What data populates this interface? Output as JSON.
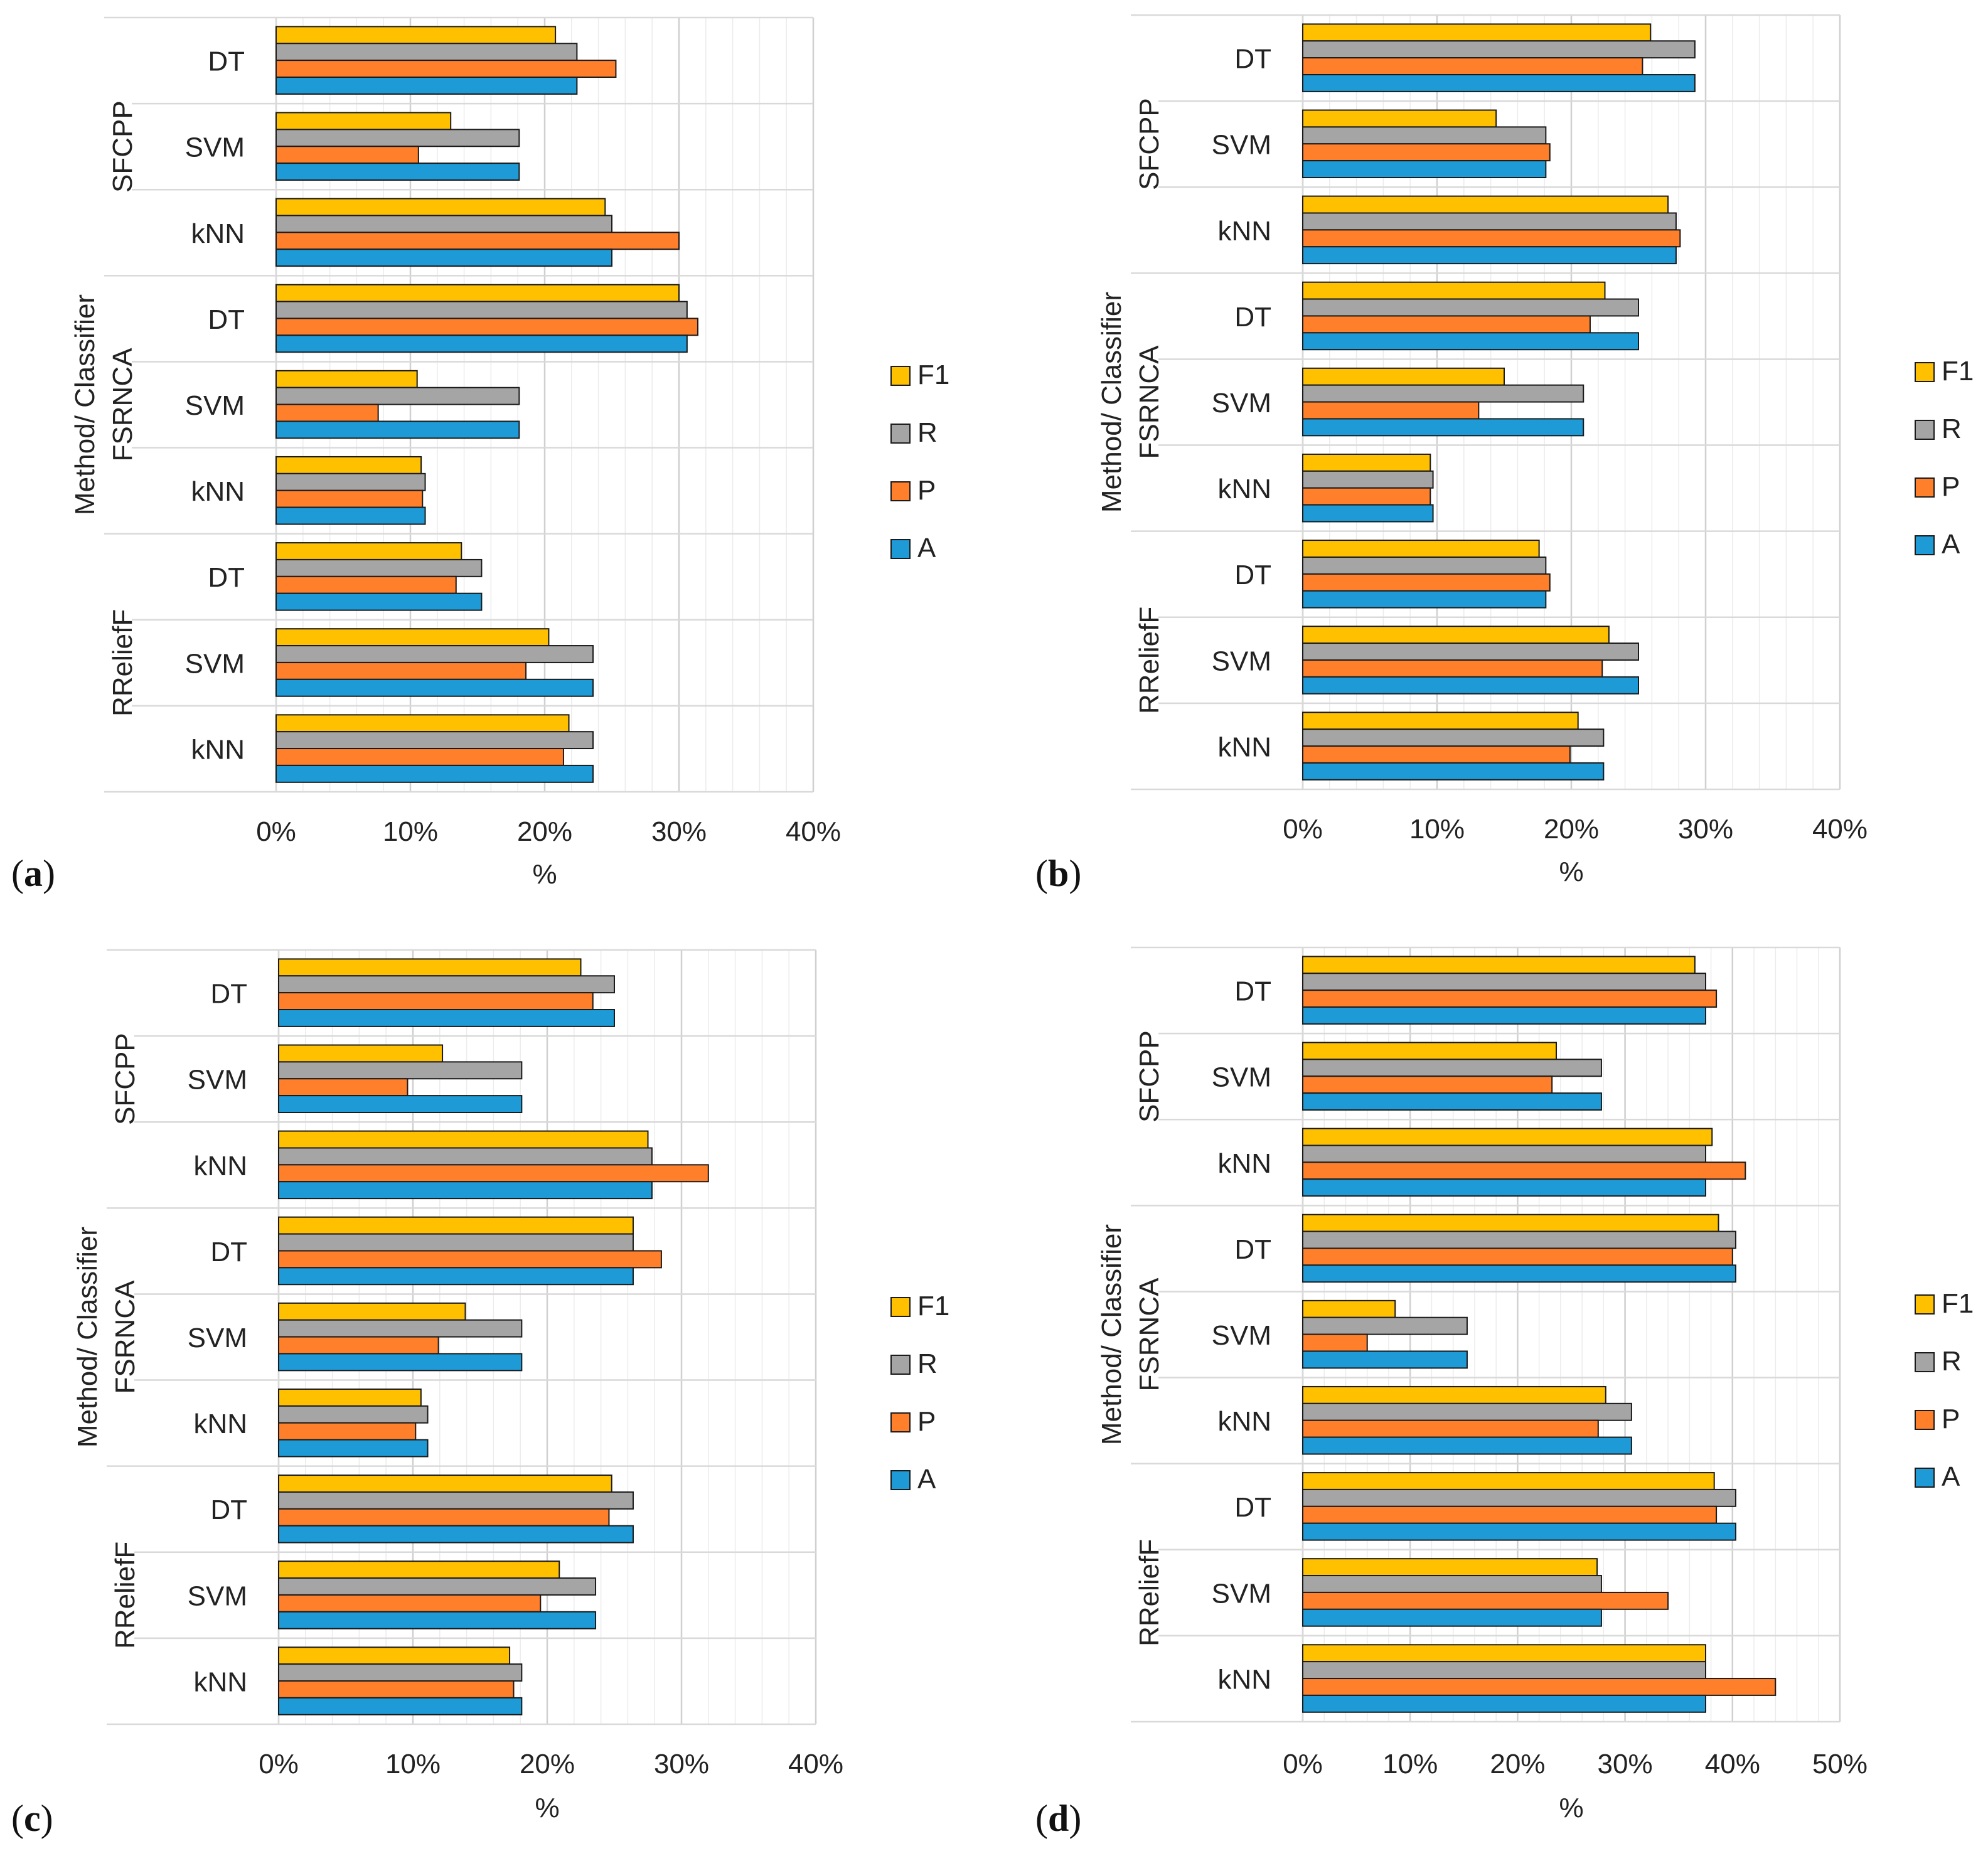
{
  "figure": {
    "ylabel": "Method/ Classifier",
    "xlabel": "%",
    "legend": [
      "F1",
      "R",
      "P",
      "A"
    ],
    "colors": {
      "F1": "#ffc000",
      "R": "#a5a5a5",
      "P": "#ff7f2a",
      "A": "#1e9ad6"
    }
  },
  "chart_data": [
    {
      "panel": "a",
      "type": "bar",
      "orientation": "horizontal",
      "xlabel": "%",
      "ylabel": "Method/ Classifier",
      "xlim": [
        0,
        40
      ],
      "ticks": [
        "0%",
        "10%",
        "20%",
        "30%",
        "40%"
      ],
      "legend": [
        "F1",
        "R",
        "P",
        "A"
      ],
      "groups": [
        {
          "method": "SFCPP",
          "classifiers": [
            {
              "name": "DT",
              "F1": 20.8,
              "R": 22.4,
              "P": 25.3,
              "A": 22.4
            },
            {
              "name": "SVM",
              "F1": 13.0,
              "R": 18.1,
              "P": 10.6,
              "A": 18.1
            },
            {
              "name": "kNN",
              "F1": 24.5,
              "R": 25.0,
              "P": 30.0,
              "A": 25.0
            }
          ]
        },
        {
          "method": "FSRNCA",
          "classifiers": [
            {
              "name": "DT",
              "F1": 30.0,
              "R": 30.6,
              "P": 31.4,
              "A": 30.6
            },
            {
              "name": "SVM",
              "F1": 10.5,
              "R": 18.1,
              "P": 7.6,
              "A": 18.1
            },
            {
              "name": "kNN",
              "F1": 10.8,
              "R": 11.1,
              "P": 10.9,
              "A": 11.1
            }
          ]
        },
        {
          "method": "RReliefF",
          "classifiers": [
            {
              "name": "DT",
              "F1": 13.8,
              "R": 15.3,
              "P": 13.4,
              "A": 15.3
            },
            {
              "name": "SVM",
              "F1": 20.3,
              "R": 23.6,
              "P": 18.6,
              "A": 23.6
            },
            {
              "name": "kNN",
              "F1": 21.8,
              "R": 23.6,
              "P": 21.4,
              "A": 23.6
            }
          ]
        }
      ]
    },
    {
      "panel": "b",
      "type": "bar",
      "orientation": "horizontal",
      "xlabel": "%",
      "ylabel": "Method/ Classifier",
      "xlim": [
        0,
        40
      ],
      "ticks": [
        "0%",
        "10%",
        "20%",
        "30%",
        "40%"
      ],
      "legend": [
        "F1",
        "R",
        "P",
        "A"
      ],
      "groups": [
        {
          "method": "SFCPP",
          "classifiers": [
            {
              "name": "DT",
              "F1": 25.9,
              "R": 29.2,
              "P": 25.3,
              "A": 29.2
            },
            {
              "name": "SVM",
              "F1": 14.4,
              "R": 18.1,
              "P": 18.4,
              "A": 18.1
            },
            {
              "name": "kNN",
              "F1": 27.2,
              "R": 27.8,
              "P": 28.1,
              "A": 27.8
            }
          ]
        },
        {
          "method": "FSRNCA",
          "classifiers": [
            {
              "name": "DT",
              "F1": 22.5,
              "R": 25.0,
              "P": 21.4,
              "A": 25.0
            },
            {
              "name": "SVM",
              "F1": 15.0,
              "R": 20.9,
              "P": 13.1,
              "A": 20.9
            },
            {
              "name": "kNN",
              "F1": 9.5,
              "R": 9.7,
              "P": 9.5,
              "A": 9.7
            }
          ]
        },
        {
          "method": "RReliefF",
          "classifiers": [
            {
              "name": "DT",
              "F1": 17.6,
              "R": 18.1,
              "P": 18.4,
              "A": 18.1
            },
            {
              "name": "SVM",
              "F1": 22.8,
              "R": 25.0,
              "P": 22.3,
              "A": 25.0
            },
            {
              "name": "kNN",
              "F1": 20.5,
              "R": 22.4,
              "P": 19.9,
              "A": 22.4
            }
          ]
        }
      ]
    },
    {
      "panel": "c",
      "type": "bar",
      "orientation": "horizontal",
      "xlabel": "%",
      "ylabel": "Method/ Classifier",
      "xlim": [
        0,
        40
      ],
      "ticks": [
        "0%",
        "10%",
        "20%",
        "30%",
        "40%"
      ],
      "legend": [
        "F1",
        "R",
        "P",
        "A"
      ],
      "groups": [
        {
          "method": "SFCPP",
          "classifiers": [
            {
              "name": "DT",
              "F1": 22.5,
              "R": 25.0,
              "P": 23.4,
              "A": 25.0
            },
            {
              "name": "SVM",
              "F1": 12.2,
              "R": 18.1,
              "P": 9.6,
              "A": 18.1
            },
            {
              "name": "kNN",
              "F1": 27.5,
              "R": 27.8,
              "P": 32.0,
              "A": 27.8
            }
          ]
        },
        {
          "method": "FSRNCA",
          "classifiers": [
            {
              "name": "DT",
              "F1": 26.4,
              "R": 26.4,
              "P": 28.5,
              "A": 26.4
            },
            {
              "name": "SVM",
              "F1": 13.9,
              "R": 18.1,
              "P": 11.9,
              "A": 18.1
            },
            {
              "name": "kNN",
              "F1": 10.6,
              "R": 11.1,
              "P": 10.2,
              "A": 11.1
            }
          ]
        },
        {
          "method": "RReliefF",
          "classifiers": [
            {
              "name": "DT",
              "F1": 24.8,
              "R": 26.4,
              "P": 24.6,
              "A": 26.4
            },
            {
              "name": "SVM",
              "F1": 20.9,
              "R": 23.6,
              "P": 19.5,
              "A": 23.6
            },
            {
              "name": "kNN",
              "F1": 17.2,
              "R": 18.1,
              "P": 17.5,
              "A": 18.1
            }
          ]
        }
      ]
    },
    {
      "panel": "d",
      "type": "bar",
      "orientation": "horizontal",
      "xlabel": "%",
      "ylabel": "Method/ Classifier",
      "xlim": [
        0,
        50
      ],
      "ticks": [
        "0%",
        "10%",
        "20%",
        "30%",
        "40%",
        "50%"
      ],
      "legend": [
        "F1",
        "R",
        "P",
        "A"
      ],
      "groups": [
        {
          "method": "SFCPP",
          "classifiers": [
            {
              "name": "DT",
              "F1": 36.5,
              "R": 37.5,
              "P": 38.5,
              "A": 37.5
            },
            {
              "name": "SVM",
              "F1": 23.6,
              "R": 27.8,
              "P": 23.2,
              "A": 27.8
            },
            {
              "name": "kNN",
              "F1": 38.1,
              "R": 37.5,
              "P": 41.2,
              "A": 37.5
            }
          ]
        },
        {
          "method": "FSRNCA",
          "classifiers": [
            {
              "name": "DT",
              "F1": 38.7,
              "R": 40.3,
              "P": 40.0,
              "A": 40.3
            },
            {
              "name": "SVM",
              "F1": 8.6,
              "R": 15.3,
              "P": 6.0,
              "A": 15.3
            },
            {
              "name": "kNN",
              "F1": 28.2,
              "R": 30.6,
              "P": 27.5,
              "A": 30.6
            }
          ]
        },
        {
          "method": "RReliefF",
          "classifiers": [
            {
              "name": "DT",
              "F1": 38.3,
              "R": 40.3,
              "P": 38.5,
              "A": 40.3
            },
            {
              "name": "SVM",
              "F1": 27.4,
              "R": 27.8,
              "P": 34.0,
              "A": 27.8
            },
            {
              "name": "kNN",
              "F1": 37.5,
              "R": 37.5,
              "P": 44.0,
              "A": 37.5
            }
          ]
        }
      ]
    }
  ]
}
